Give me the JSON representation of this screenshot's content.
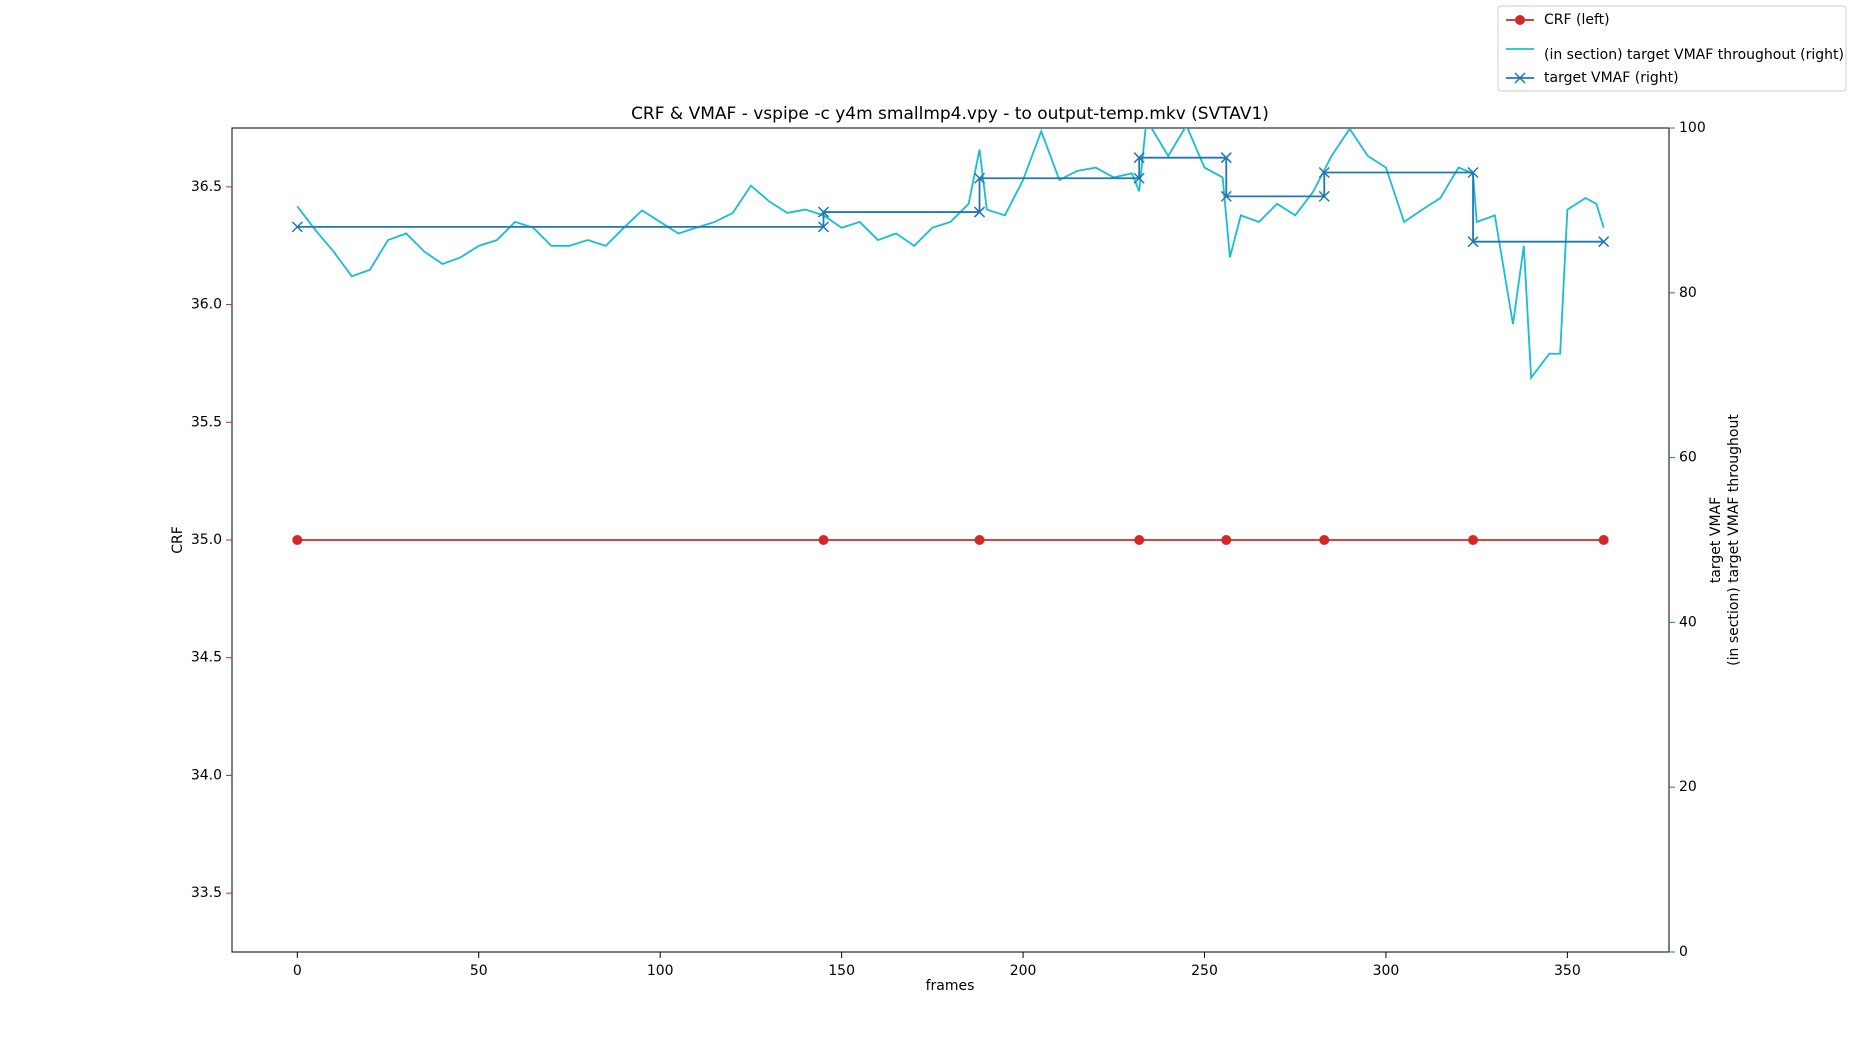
{
  "chart_data": {
    "type": "line",
    "title": "CRF & VMAF - vspipe   -c y4m smallmp4.vpy - to output-temp.mkv (SVTAV1)",
    "x_label": "frames",
    "y_label": "CRF",
    "y2_label": [
      "target VMAF",
      "(in section) target VMAF throughout"
    ],
    "xlim": [
      -18,
      378
    ],
    "xticks": [
      0,
      50,
      100,
      150,
      200,
      250,
      300,
      350
    ],
    "ylim": [
      33.25,
      36.75
    ],
    "yticks": [
      33.5,
      {
        "value": 34,
        "label": "34.0"
      },
      34.5,
      {
        "value": 35,
        "label": "35.0"
      },
      35.5,
      {
        "value": 36,
        "label": "36.0"
      },
      36.5
    ],
    "y2lim": [
      0,
      100
    ],
    "y2ticks": [
      0,
      20,
      40,
      60,
      80,
      100
    ],
    "y_color": "#d62728",
    "y2_color": "#1f77b4",
    "legend": "upper-right",
    "series": [
      {
        "name": "CRF (left)",
        "color": "#d62728",
        "marker": "o",
        "x": [
          0,
          145,
          188,
          232,
          256,
          283,
          324,
          360
        ],
        "values": [
          35,
          35,
          35,
          35,
          35,
          35,
          35,
          35
        ]
      },
      {
        "name": "(in section) target VMAF throughout (right)",
        "color": "#17becf",
        "marker": null,
        "axis": "y2",
        "x": [
          0,
          5,
          10,
          15,
          20,
          25,
          30,
          35,
          40,
          45,
          50,
          55,
          60,
          65,
          70,
          75,
          80,
          85,
          90,
          95,
          100,
          105,
          110,
          115,
          120,
          125,
          130,
          135,
          140,
          145,
          150,
          155,
          160,
          165,
          170,
          175,
          180,
          185,
          188,
          190,
          195,
          200,
          205,
          210,
          215,
          220,
          225,
          230,
          232,
          234,
          240,
          245,
          250,
          255,
          257,
          260,
          265,
          270,
          275,
          280,
          285,
          290,
          295,
          300,
          305,
          310,
          315,
          320,
          324,
          325,
          330,
          335,
          338,
          340,
          345,
          348,
          350,
          355,
          358,
          360
        ],
        "values": [
          90.5,
          87.6,
          85,
          82,
          82.8,
          86.4,
          87.2,
          85,
          83.5,
          84.3,
          85.7,
          86.4,
          88.6,
          87.9,
          85.7,
          85.7,
          86.4,
          85.7,
          87.9,
          90,
          88.6,
          87.2,
          87.9,
          88.6,
          89.7,
          93,
          91.1,
          89.7,
          90.1,
          89.4,
          87.9,
          88.6,
          86.4,
          87.2,
          85.7,
          87.9,
          88.6,
          90.8,
          97.4,
          90.1,
          89.4,
          93.7,
          99.6,
          93.7,
          94.8,
          95.2,
          94,
          94.5,
          92.3,
          101,
          96.6,
          100.3,
          95.2,
          94,
          84.3,
          89.4,
          88.6,
          90.8,
          89.4,
          92.3,
          96.6,
          99.9,
          96.6,
          95.2,
          88.6,
          90.1,
          91.5,
          95.2,
          94.5,
          88.6,
          89.4,
          76.2,
          85.7,
          69.7,
          72.6,
          72.6,
          90.1,
          91.5,
          90.8,
          87.9
        ]
      },
      {
        "name": "target VMAF (right)",
        "color": "#1f77b4",
        "marker": "x",
        "axis": "y2",
        "x": [
          0,
          145,
          145,
          188,
          188,
          232,
          232,
          256,
          256,
          283,
          283,
          324,
          324,
          360
        ],
        "values": [
          88,
          88,
          89.8,
          89.8,
          93.9,
          93.9,
          96.4,
          96.4,
          91.7,
          91.7,
          94.6,
          94.6,
          86.2,
          86.2
        ]
      }
    ]
  }
}
